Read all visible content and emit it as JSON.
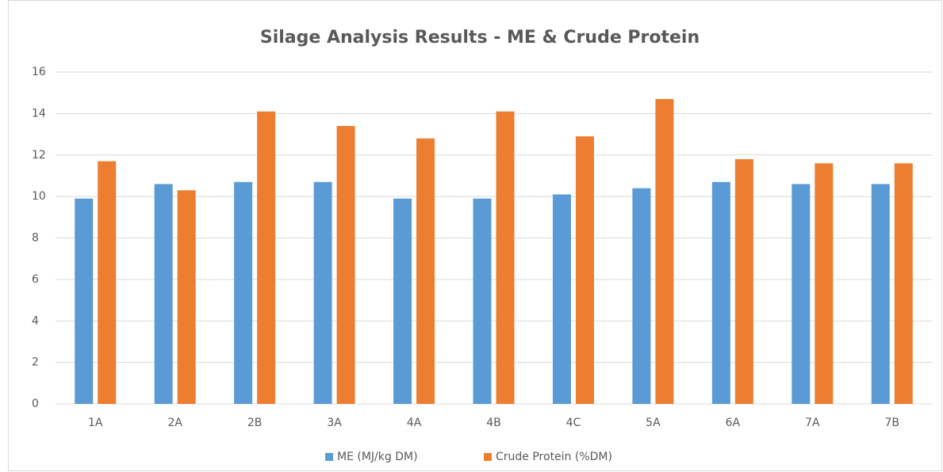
{
  "chart_data": {
    "type": "bar",
    "title": "Silage Analysis Results - ME & Crude Protein",
    "categories": [
      "1A",
      "2A",
      "2B",
      "3A",
      "4A",
      "4B",
      "4C",
      "5A",
      "6A",
      "7A",
      "7B"
    ],
    "series": [
      {
        "name": "ME (MJ/kg DM)",
        "color": "#5b9bd5",
        "values": [
          9.9,
          10.6,
          10.7,
          10.7,
          9.9,
          9.9,
          10.1,
          10.4,
          10.7,
          10.6,
          10.6
        ]
      },
      {
        "name": "Crude Protein (%DM)",
        "color": "#ed7d31",
        "values": [
          11.7,
          10.3,
          14.1,
          13.4,
          12.8,
          14.1,
          12.9,
          14.7,
          11.8,
          11.6,
          11.6
        ]
      }
    ],
    "ylim": [
      0,
      16
    ],
    "yticks": [
      0,
      2,
      4,
      6,
      8,
      10,
      12,
      14,
      16
    ],
    "grid": true,
    "legend": "bottom"
  }
}
